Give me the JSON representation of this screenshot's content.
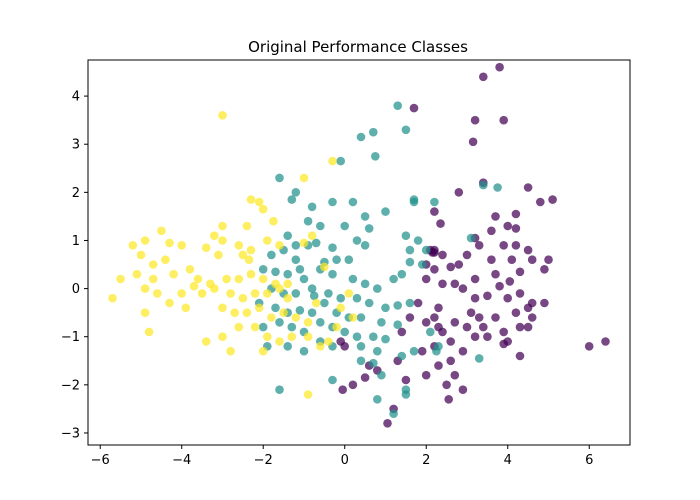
{
  "chart_data": {
    "type": "scatter",
    "title": "Original Performance Classes",
    "xlabel": "",
    "ylabel": "",
    "xlim": [
      -6.3,
      7.0
    ],
    "ylim": [
      -3.25,
      4.75
    ],
    "xticks": [
      "−6",
      "−4",
      "−2",
      "0",
      "2",
      "4",
      "6"
    ],
    "xtick_values": [
      -6,
      -4,
      -2,
      0,
      2,
      4,
      6
    ],
    "yticks": [
      "−3",
      "−2",
      "−1",
      "0",
      "1",
      "2",
      "3",
      "4"
    ],
    "ytick_values": [
      -3,
      -2,
      -1,
      0,
      1,
      2,
      3,
      4
    ],
    "grid": false,
    "series": [
      {
        "color": "#440154",
        "points": [
          [
            3.8,
            4.6
          ],
          [
            3.4,
            4.4
          ],
          [
            3.2,
            3.5
          ],
          [
            3.9,
            3.5
          ],
          [
            1.7,
            3.75
          ],
          [
            3.15,
            3.05
          ],
          [
            3.4,
            2.2
          ],
          [
            4.5,
            2.1
          ],
          [
            2.8,
            2.0
          ],
          [
            4.8,
            1.8
          ],
          [
            5.1,
            1.85
          ],
          [
            4.2,
            1.55
          ],
          [
            2.2,
            1.6
          ],
          [
            2.35,
            1.35
          ],
          [
            3.7,
            1.5
          ],
          [
            4.0,
            1.3
          ],
          [
            3.6,
            1.2
          ],
          [
            4.2,
            1.25
          ],
          [
            3.3,
            0.9
          ],
          [
            3.2,
            1.05
          ],
          [
            3.9,
            0.9
          ],
          [
            4.5,
            0.8
          ],
          [
            4.2,
            0.9
          ],
          [
            2.1,
            0.8
          ],
          [
            2.2,
            0.75
          ],
          [
            2.4,
            0.7
          ],
          [
            3.0,
            0.7
          ],
          [
            3.6,
            0.6
          ],
          [
            4.1,
            0.6
          ],
          [
            4.6,
            0.6
          ],
          [
            4.9,
            0.4
          ],
          [
            5.0,
            0.6
          ],
          [
            2.6,
            0.45
          ],
          [
            2.8,
            0.5
          ],
          [
            2.2,
            0.4
          ],
          [
            3.2,
            0.2
          ],
          [
            3.7,
            0.3
          ],
          [
            4.3,
            0.35
          ],
          [
            4.05,
            0.15
          ],
          [
            2.0,
            0.2
          ],
          [
            2.4,
            0.1
          ],
          [
            2.7,
            0.1
          ],
          [
            2.9,
            0.0
          ],
          [
            3.2,
            -0.2
          ],
          [
            3.5,
            -0.15
          ],
          [
            3.8,
            0.05
          ],
          [
            4.0,
            -0.2
          ],
          [
            4.3,
            -0.1
          ],
          [
            4.6,
            -0.3
          ],
          [
            4.9,
            -0.3
          ],
          [
            1.8,
            -0.3
          ],
          [
            2.3,
            -0.4
          ],
          [
            3.1,
            -0.5
          ],
          [
            3.3,
            -0.6
          ],
          [
            3.7,
            -0.6
          ],
          [
            4.2,
            -0.5
          ],
          [
            4.5,
            -0.4
          ],
          [
            1.6,
            -0.6
          ],
          [
            2.0,
            -0.7
          ],
          [
            2.2,
            -0.6
          ],
          [
            2.7,
            -0.7
          ],
          [
            3.0,
            -0.8
          ],
          [
            3.4,
            -0.8
          ],
          [
            3.9,
            -0.9
          ],
          [
            4.3,
            -0.8
          ],
          [
            4.6,
            -0.6
          ],
          [
            1.4,
            -0.9
          ],
          [
            2.4,
            -0.9
          ],
          [
            2.6,
            -1.1
          ],
          [
            3.2,
            -1.0
          ],
          [
            3.5,
            -1.0
          ],
          [
            4.0,
            -1.1
          ],
          [
            4.5,
            -0.8
          ],
          [
            4.3,
            -1.4
          ],
          [
            3.9,
            -1.15
          ],
          [
            2.2,
            -1.2
          ],
          [
            2.9,
            -1.3
          ],
          [
            2.6,
            -1.5
          ],
          [
            2.3,
            -1.6
          ],
          [
            2.0,
            -1.8
          ],
          [
            2.5,
            -2.0
          ],
          [
            2.7,
            -1.8
          ],
          [
            1.3,
            -1.5
          ],
          [
            0.6,
            -1.6
          ],
          [
            0.8,
            -1.7
          ],
          [
            0.5,
            -1.85
          ],
          [
            0.2,
            -2.0
          ],
          [
            -0.05,
            -2.1
          ],
          [
            0.0,
            -1.2
          ],
          [
            -0.1,
            -1.1
          ],
          [
            1.2,
            -2.5
          ],
          [
            1.05,
            -2.8
          ],
          [
            1.5,
            -1.9
          ],
          [
            2.9,
            -2.1
          ],
          [
            2.55,
            -2.3
          ],
          [
            1.9,
            -1.3
          ],
          [
            2.0,
            0.5
          ],
          [
            2.3,
            -0.8
          ],
          [
            6.0,
            -1.2
          ],
          [
            6.4,
            -1.1
          ],
          [
            2.15,
            0.75
          ],
          [
            2.2,
            0.8
          ]
        ]
      },
      {
        "color": "#21918c",
        "points": [
          [
            1.3,
            3.8
          ],
          [
            1.5,
            3.3
          ],
          [
            0.7,
            3.25
          ],
          [
            0.4,
            3.15
          ],
          [
            0.75,
            2.75
          ],
          [
            -0.1,
            2.65
          ],
          [
            3.75,
            2.1
          ],
          [
            3.4,
            2.15
          ],
          [
            -1.6,
            2.3
          ],
          [
            -1.2,
            2.0
          ],
          [
            -1.3,
            1.85
          ],
          [
            -0.8,
            1.7
          ],
          [
            -0.3,
            1.8
          ],
          [
            0.2,
            1.8
          ],
          [
            0.5,
            1.5
          ],
          [
            1.0,
            1.6
          ],
          [
            1.7,
            1.8
          ],
          [
            1.7,
            1.85
          ],
          [
            2.2,
            1.8
          ],
          [
            -0.9,
            1.4
          ],
          [
            -0.6,
            1.3
          ],
          [
            0.0,
            1.3
          ],
          [
            0.6,
            1.25
          ],
          [
            -1.4,
            1.1
          ],
          [
            -1.2,
            0.9
          ],
          [
            -0.9,
            0.9
          ],
          [
            -0.7,
            0.95
          ],
          [
            -0.3,
            0.85
          ],
          [
            0.3,
            1.0
          ],
          [
            0.5,
            0.9
          ],
          [
            -1.8,
            0.7
          ],
          [
            -1.5,
            0.8
          ],
          [
            -1.2,
            0.6
          ],
          [
            -0.5,
            0.55
          ],
          [
            -0.2,
            0.6
          ],
          [
            0.1,
            0.6
          ],
          [
            1.5,
            1.1
          ],
          [
            1.8,
            1.0
          ],
          [
            1.6,
            0.8
          ],
          [
            2.0,
            0.8
          ],
          [
            1.9,
            0.5
          ],
          [
            1.6,
            0.55
          ],
          [
            3.1,
            1.05
          ],
          [
            -2.0,
            0.4
          ],
          [
            -1.7,
            0.35
          ],
          [
            -1.4,
            0.3
          ],
          [
            -1.0,
            0.2
          ],
          [
            -0.6,
            0.4
          ],
          [
            -0.3,
            0.3
          ],
          [
            0.2,
            0.2
          ],
          [
            0.5,
            0.1
          ],
          [
            0.8,
            0.0
          ],
          [
            1.2,
            0.2
          ],
          [
            1.4,
            0.3
          ],
          [
            -1.8,
            0.0
          ],
          [
            -1.5,
            -0.1
          ],
          [
            -1.2,
            -0.1
          ],
          [
            -0.8,
            0.0
          ],
          [
            -0.4,
            -0.1
          ],
          [
            -0.1,
            -0.2
          ],
          [
            0.3,
            -0.2
          ],
          [
            0.6,
            -0.3
          ],
          [
            1.0,
            -0.4
          ],
          [
            1.3,
            -0.35
          ],
          [
            1.6,
            -0.3
          ],
          [
            -2.1,
            -0.3
          ],
          [
            -1.7,
            -0.4
          ],
          [
            -1.4,
            -0.5
          ],
          [
            -1.1,
            -0.45
          ],
          [
            -0.8,
            -0.5
          ],
          [
            -0.5,
            -0.3
          ],
          [
            -0.2,
            -0.5
          ],
          [
            0.1,
            -0.6
          ],
          [
            0.4,
            -0.6
          ],
          [
            0.9,
            -0.7
          ],
          [
            1.3,
            -0.75
          ],
          [
            -2.0,
            -0.8
          ],
          [
            -1.6,
            -0.7
          ],
          [
            -1.3,
            -0.8
          ],
          [
            -1.0,
            -0.9
          ],
          [
            -0.6,
            -0.7
          ],
          [
            -0.3,
            -0.8
          ],
          [
            0.0,
            -0.9
          ],
          [
            0.3,
            -1.0
          ],
          [
            0.7,
            -1.0
          ],
          [
            1.0,
            -1.05
          ],
          [
            -1.9,
            -1.2
          ],
          [
            -1.4,
            -1.2
          ],
          [
            -1.0,
            -1.3
          ],
          [
            -0.6,
            -1.1
          ],
          [
            -0.3,
            -1.2
          ],
          [
            0.4,
            -1.2
          ],
          [
            0.8,
            -1.3
          ],
          [
            1.4,
            -1.4
          ],
          [
            1.7,
            -1.3
          ],
          [
            -1.6,
            -2.1
          ],
          [
            -0.3,
            -1.9
          ],
          [
            0.4,
            -1.5
          ],
          [
            0.7,
            -1.55
          ],
          [
            0.9,
            -1.8
          ],
          [
            1.5,
            -2.1
          ],
          [
            1.5,
            -2.2
          ],
          [
            0.8,
            -2.3
          ],
          [
            1.2,
            -2.6
          ],
          [
            2.3,
            -1.2
          ],
          [
            2.25,
            -1.3
          ],
          [
            3.3,
            -1.45
          ],
          [
            2.1,
            -0.9
          ],
          [
            -1.1,
            0.4
          ],
          [
            -0.75,
            -0.15
          ]
        ]
      },
      {
        "color": "#fde725",
        "points": [
          [
            -3.0,
            3.6
          ],
          [
            -1.0,
            2.3
          ],
          [
            -0.3,
            2.65
          ],
          [
            -2.3,
            1.85
          ],
          [
            -2.1,
            1.8
          ],
          [
            -2.0,
            1.65
          ],
          [
            -1.75,
            1.4
          ],
          [
            -2.4,
            1.3
          ],
          [
            -3.0,
            1.3
          ],
          [
            -3.2,
            1.1
          ],
          [
            -3.0,
            1.0
          ],
          [
            -3.4,
            0.85
          ],
          [
            -4.5,
            1.2
          ],
          [
            -4.0,
            0.9
          ],
          [
            -4.3,
            0.95
          ],
          [
            -4.9,
            1.0
          ],
          [
            -5.2,
            0.9
          ],
          [
            -5.0,
            0.7
          ],
          [
            -4.7,
            0.5
          ],
          [
            -4.4,
            0.6
          ],
          [
            -3.8,
            0.4
          ],
          [
            -3.1,
            0.7
          ],
          [
            -2.5,
            0.7
          ],
          [
            -2.3,
            0.8
          ],
          [
            -1.9,
            1.0
          ],
          [
            -1.6,
            0.9
          ],
          [
            -1.0,
            0.95
          ],
          [
            -0.8,
            1.1
          ],
          [
            -5.5,
            0.2
          ],
          [
            -5.1,
            0.3
          ],
          [
            -4.7,
            0.2
          ],
          [
            -4.2,
            0.3
          ],
          [
            -3.6,
            0.2
          ],
          [
            -3.3,
            0.1
          ],
          [
            -2.9,
            0.2
          ],
          [
            -2.6,
            0.2
          ],
          [
            -2.3,
            0.3
          ],
          [
            -2.0,
            0.2
          ],
          [
            -1.7,
            0.1
          ],
          [
            -1.4,
            0.1
          ],
          [
            -5.7,
            -0.2
          ],
          [
            -4.9,
            0.0
          ],
          [
            -4.6,
            -0.1
          ],
          [
            -4.0,
            -0.1
          ],
          [
            -3.5,
            -0.1
          ],
          [
            -3.2,
            0.0
          ],
          [
            -2.8,
            -0.1
          ],
          [
            -2.5,
            -0.2
          ],
          [
            -2.2,
            -0.1
          ],
          [
            -1.9,
            -0.1
          ],
          [
            -1.6,
            0.0
          ],
          [
            -3.9,
            -0.4
          ],
          [
            -3.0,
            -0.4
          ],
          [
            -2.7,
            -0.5
          ],
          [
            -2.4,
            -0.5
          ],
          [
            -2.1,
            -0.4
          ],
          [
            -1.8,
            -0.6
          ],
          [
            -1.5,
            -0.5
          ],
          [
            -1.2,
            -0.6
          ],
          [
            -0.9,
            -0.7
          ],
          [
            -4.9,
            -0.5
          ],
          [
            -4.8,
            -0.9
          ],
          [
            -3.4,
            -1.1
          ],
          [
            -3.0,
            -1.0
          ],
          [
            -2.6,
            -0.8
          ],
          [
            -2.2,
            -0.8
          ],
          [
            -1.9,
            -1.0
          ],
          [
            -1.6,
            -1.1
          ],
          [
            -1.3,
            -1.0
          ],
          [
            -0.9,
            -1.0
          ],
          [
            -0.6,
            -1.2
          ],
          [
            -0.4,
            -1.1
          ],
          [
            -0.2,
            -0.8
          ],
          [
            -0.1,
            -0.4
          ],
          [
            0.2,
            -0.6
          ],
          [
            0.1,
            -0.1
          ],
          [
            -0.5,
            0.45
          ],
          [
            -0.9,
            -2.2
          ],
          [
            -2.8,
            -1.3
          ],
          [
            -2.0,
            -1.3
          ],
          [
            -1.4,
            -0.2
          ],
          [
            -0.7,
            -0.3
          ],
          [
            -2.6,
            0.9
          ],
          [
            -2.35,
            0.6
          ],
          [
            -3.7,
            0.05
          ],
          [
            -4.3,
            -0.3
          ]
        ]
      }
    ]
  }
}
